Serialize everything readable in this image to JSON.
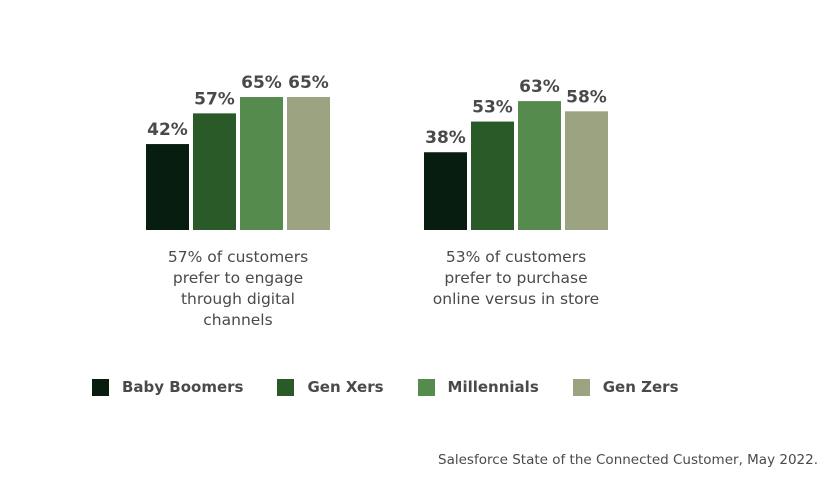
{
  "chart_data": [
    {
      "type": "bar",
      "categories": [
        "Baby Boomers",
        "Gen Xers",
        "Millennials",
        "Gen Zers"
      ],
      "values": [
        42,
        57,
        65,
        65
      ],
      "value_labels": [
        "42%",
        "57%",
        "65%",
        "65%"
      ],
      "caption": [
        "57% of customers",
        "prefer to engage",
        "through digital",
        "channels"
      ],
      "ylim": [
        0,
        65
      ]
    },
    {
      "type": "bar",
      "categories": [
        "Baby Boomers",
        "Gen Xers",
        "Millennials",
        "Gen Zers"
      ],
      "values": [
        38,
        53,
        63,
        58
      ],
      "value_labels": [
        "38%",
        "53%",
        "63%",
        "58%"
      ],
      "caption": [
        "53% of customers",
        "prefer to purchase",
        "online versus in store"
      ],
      "ylim": [
        0,
        65
      ]
    }
  ],
  "legend": {
    "items": [
      {
        "label": "Baby Boomers",
        "color": "#071d10"
      },
      {
        "label": "Gen Xers",
        "color": "#2a5a28"
      },
      {
        "label": "Millennials",
        "color": "#568b4e"
      },
      {
        "label": "Gen Zers",
        "color": "#9ba381"
      }
    ],
    "placement": "bottom"
  },
  "source": "Salesforce State of the Connected Customer, May 2022.",
  "colors": {
    "text": "#4a4a4a"
  }
}
